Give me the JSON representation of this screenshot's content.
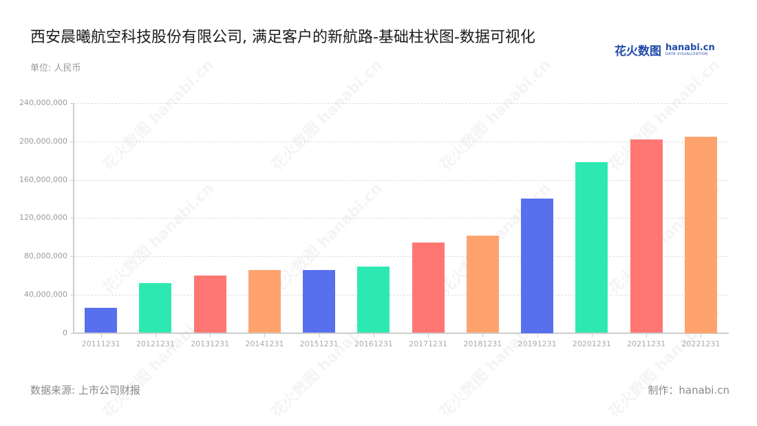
{
  "header": {
    "title": "西安晨曦航空科技股份有限公司, 满足客户的新航路-基础柱状图-数据可视化",
    "unit": "单位: 人民币"
  },
  "logo": {
    "cn": "花火数图",
    "en": "hanabi.cn",
    "tagline": "DATA VISUALIZATION"
  },
  "footer": {
    "source": "数据来源: 上市公司财报",
    "maker": "制作：hanabi.cn"
  },
  "watermark": "花火数图 hanabi.cn",
  "colors": [
    "#586FEE",
    "#2EE8B2",
    "#FF7672",
    "#FFA36E"
  ],
  "chart_data": {
    "type": "bar",
    "title": "西安晨曦航空科技股份有限公司, 满足客户的新航路-基础柱状图-数据可视化",
    "xlabel": "",
    "ylabel": "单位: 人民币",
    "ylim": [
      0,
      240000000
    ],
    "yticks": [
      "0",
      "40,000,000",
      "80,000,000",
      "120,000,000",
      "160,000,000",
      "200,000,000",
      "240,000,000"
    ],
    "grid": true,
    "legend": null,
    "categories": [
      "20111231",
      "20121231",
      "20131231",
      "20141231",
      "20151231",
      "20161231",
      "20171231",
      "20181231",
      "20191231",
      "20201231",
      "20211231",
      "20221231"
    ],
    "values": [
      26200000,
      52000000,
      59900000,
      65900000,
      65400000,
      69000000,
      94500000,
      101300000,
      140000000,
      178300000,
      201900000,
      205000000
    ]
  }
}
